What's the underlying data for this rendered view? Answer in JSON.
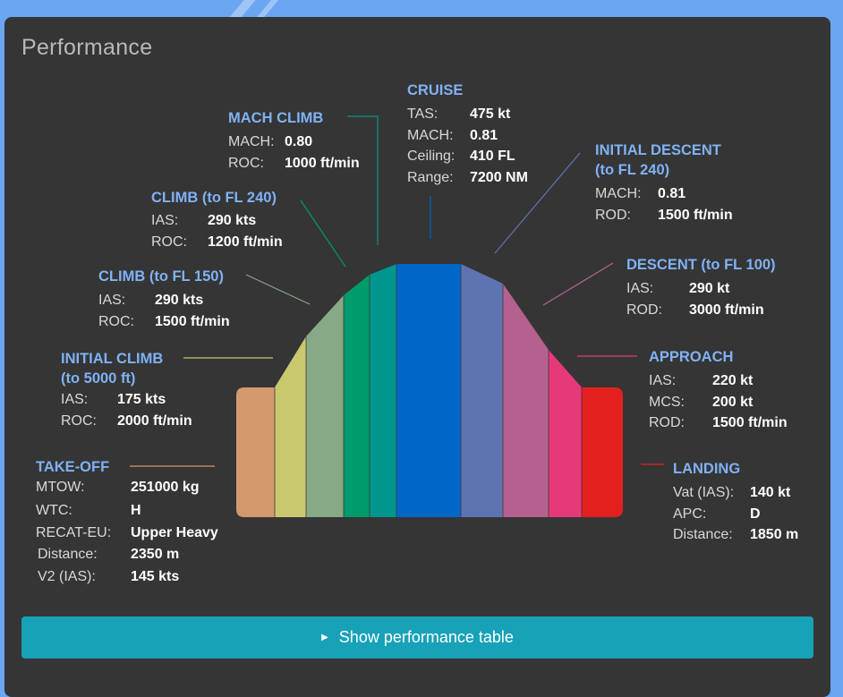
{
  "panel": {
    "title": "Performance"
  },
  "phases": {
    "takeoff": {
      "title": "TAKE-OFF",
      "color": "#d29a6e",
      "rows": [
        {
          "label": "MTOW:",
          "value": "251000 kg"
        },
        {
          "label": "WTC:",
          "value": "H"
        },
        {
          "label": "RECAT-EU:",
          "value": "Upper Heavy"
        },
        {
          "label": "Distance:",
          "value": "2350 m"
        },
        {
          "label": "V2 (IAS):",
          "value": "145 kts"
        }
      ]
    },
    "initial_climb": {
      "title": "INITIAL CLIMB",
      "title2": "(to 5000 ft)",
      "color": "#c8c96e",
      "rows": [
        {
          "label": "IAS:",
          "value": "175 kts"
        },
        {
          "label": "ROC:",
          "value": "2000 ft/min"
        }
      ]
    },
    "climb150": {
      "title": "CLIMB (to FL 150)",
      "color": "#88a985",
      "rows": [
        {
          "label": "IAS:",
          "value": "290 kts"
        },
        {
          "label": "ROC:",
          "value": "1500 ft/min"
        }
      ]
    },
    "climb240": {
      "title": "CLIMB (to FL 240)",
      "color": "#009b6a",
      "rows": [
        {
          "label": "IAS:",
          "value": "290 kts"
        },
        {
          "label": "ROC:",
          "value": "1200 ft/min"
        }
      ]
    },
    "mach_climb": {
      "title": "MACH CLIMB",
      "color": "#00968e",
      "rows": [
        {
          "label": "MACH:",
          "value": "0.80"
        },
        {
          "label": "ROC:",
          "value": "1000 ft/min"
        }
      ]
    },
    "cruise": {
      "title": "CRUISE",
      "color": "#0066c8",
      "rows": [
        {
          "label": "TAS:",
          "value": "475 kt"
        },
        {
          "label": "MACH:",
          "value": "0.81"
        },
        {
          "label": "Ceiling:",
          "value": "410 FL"
        },
        {
          "label": "Range:",
          "value": "7200 NM"
        }
      ]
    },
    "initial_descent": {
      "title": "INITIAL DESCENT",
      "title2": "(to FL 240)",
      "color": "#5e74b2",
      "rows": [
        {
          "label": "MACH:",
          "value": "0.81"
        },
        {
          "label": "ROD:",
          "value": "1500 ft/min"
        }
      ]
    },
    "descent": {
      "title": "DESCENT (to FL 100)",
      "color": "#b5618f",
      "rows": [
        {
          "label": "IAS:",
          "value": "290 kt"
        },
        {
          "label": "ROD:",
          "value": "3000 ft/min"
        }
      ]
    },
    "approach": {
      "title": "APPROACH",
      "color": "#e6397a",
      "rows": [
        {
          "label": "IAS:",
          "value": "220 kt"
        },
        {
          "label": "MCS:",
          "value": "200 kt"
        },
        {
          "label": "ROD:",
          "value": "1500 ft/min"
        }
      ]
    },
    "landing": {
      "title": "LANDING",
      "color": "#e3201e",
      "rows": [
        {
          "label": "Vat (IAS):",
          "value": "140 kt"
        },
        {
          "label": "APC:",
          "value": "D"
        },
        {
          "label": "Distance:",
          "value": "1850 m"
        }
      ]
    }
  },
  "toggle": {
    "label": "Show performance table",
    "icon": "caret-right-icon"
  }
}
